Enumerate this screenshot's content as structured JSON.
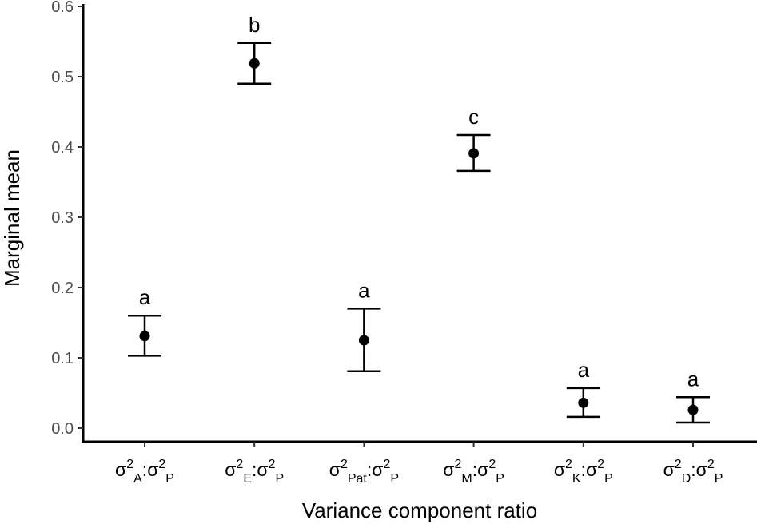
{
  "chart_data": {
    "type": "scatter",
    "title": "",
    "xlabel": "Variance component ratio",
    "ylabel": "Marginal mean",
    "ylim": [
      0,
      0.6
    ],
    "yticks": [
      "0.0",
      "0.1",
      "0.2",
      "0.3",
      "0.4",
      "0.5",
      "0.6"
    ],
    "ytick_values": [
      0,
      0.1,
      0.2,
      0.3,
      0.4,
      0.5,
      0.6
    ],
    "grid": false,
    "legend": "none",
    "colors": {
      "marks": "#000000",
      "ticks": "#4d4d4d"
    },
    "categories": [
      {
        "base": "σ",
        "sup": "2",
        "sub": "A",
        "sep": ":",
        "base2": "σ",
        "sup2": "2",
        "sub2": "P"
      },
      {
        "base": "σ",
        "sup": "2",
        "sub": "E",
        "sep": ":",
        "base2": "σ",
        "sup2": "2",
        "sub2": "P"
      },
      {
        "base": "σ",
        "sup": "2",
        "sub": "Pat",
        "sep": ":",
        "base2": "σ",
        "sup2": "2",
        "sub2": "P"
      },
      {
        "base": "σ",
        "sup": "2",
        "sub": "M",
        "sep": ":",
        "base2": "σ",
        "sup2": "2",
        "sub2": "P"
      },
      {
        "base": "σ",
        "sup": "2",
        "sub": "K",
        "sep": ":",
        "base2": "σ",
        "sup2": "2",
        "sub2": "P"
      },
      {
        "base": "σ",
        "sup": "2",
        "sub": "D",
        "sep": ":",
        "base2": "σ",
        "sup2": "2",
        "sub2": "P"
      }
    ],
    "points": [
      {
        "mean": 0.131,
        "lower": 0.103,
        "upper": 0.16,
        "group": "a"
      },
      {
        "mean": 0.519,
        "lower": 0.49,
        "upper": 0.548,
        "group": "b"
      },
      {
        "mean": 0.125,
        "lower": 0.081,
        "upper": 0.17,
        "group": "a"
      },
      {
        "mean": 0.391,
        "lower": 0.366,
        "upper": 0.417,
        "group": "c"
      },
      {
        "mean": 0.036,
        "lower": 0.016,
        "upper": 0.057,
        "group": "a"
      },
      {
        "mean": 0.026,
        "lower": 0.008,
        "upper": 0.044,
        "group": "a"
      }
    ]
  }
}
